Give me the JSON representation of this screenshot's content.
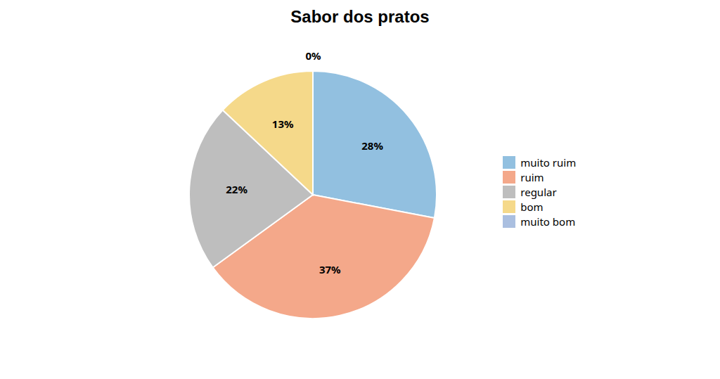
{
  "chart_data": {
    "type": "pie",
    "title": "Sabor dos pratos",
    "categories": [
      "muito ruim",
      "ruim",
      "regular",
      "bom",
      "muito bom"
    ],
    "values": [
      28,
      37,
      22,
      13,
      0
    ],
    "value_labels": [
      "28%",
      "37%",
      "22%",
      "13%",
      "0%"
    ],
    "colors": [
      "#92C0E0",
      "#F4A88A",
      "#BEBEBE",
      "#F5D98A",
      "#AABFE0"
    ],
    "data_labels": true,
    "legend": "right"
  }
}
